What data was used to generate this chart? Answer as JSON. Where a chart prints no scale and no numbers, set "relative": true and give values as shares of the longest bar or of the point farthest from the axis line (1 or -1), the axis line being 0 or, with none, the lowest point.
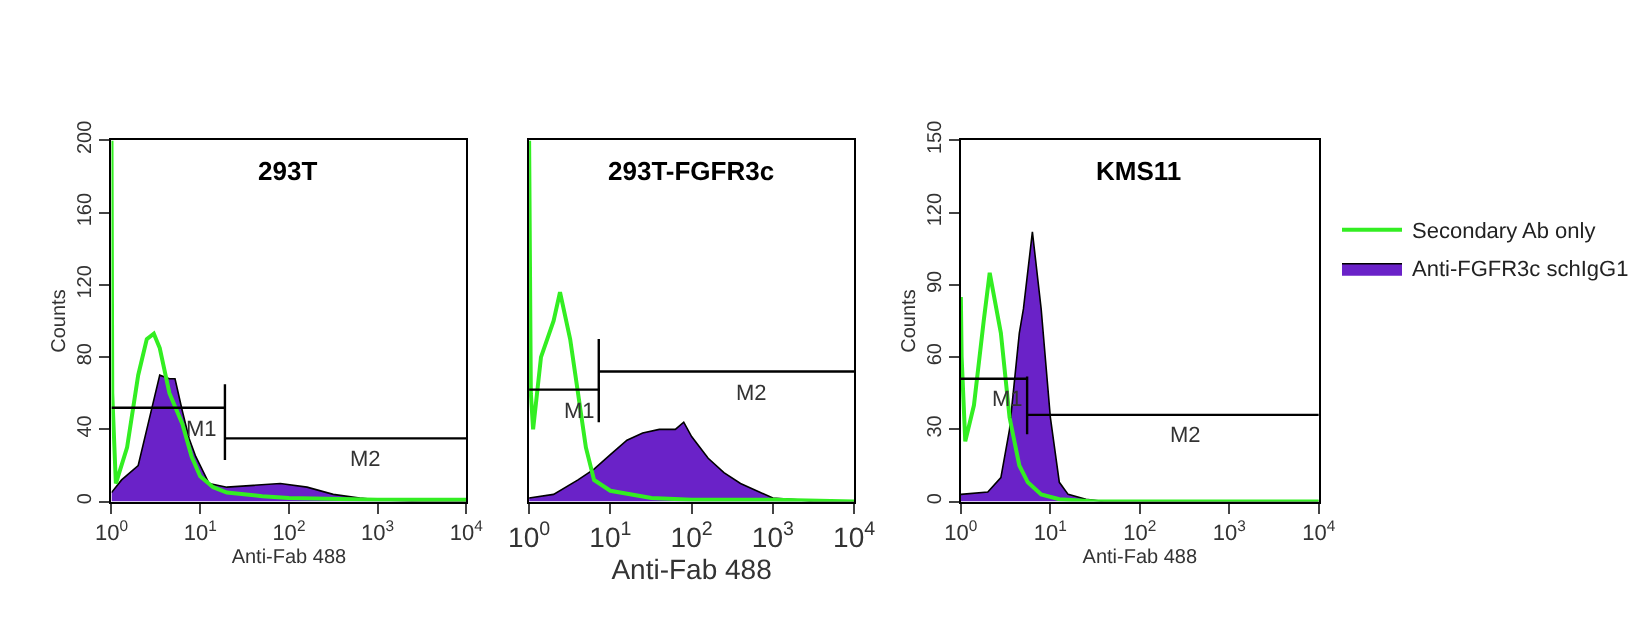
{
  "chart_data": [
    {
      "type": "area",
      "title": "293T",
      "xlabel": "Anti-Fab 488",
      "ylabel": "Counts",
      "log": "x",
      "legend": false,
      "xlim": [
        1,
        10000
      ],
      "xticks": [
        {
          "value": 1,
          "label": "10$^{0}$"
        },
        {
          "value": 10,
          "label": "10$^{1}$"
        },
        {
          "value": 100,
          "label": "10$^{2}$"
        },
        {
          "value": 1000,
          "label": "10$^{3}$"
        },
        {
          "value": 10000,
          "label": "10$^{4}$"
        }
      ],
      "ylim": [
        0,
        200
      ],
      "yticks": [
        0,
        40,
        80,
        120,
        160,
        200
      ],
      "series": [
        {
          "color": "#6a22c8",
          "x": [
            1,
            1.3,
            2,
            2.5,
            3.5,
            4.5,
            5.2,
            6.3,
            7.5,
            8.9,
            12.6,
            20,
            40,
            80,
            160,
            316,
            630,
            1000,
            3162,
            10000
          ],
          "values": [
            5,
            12,
            20,
            40,
            70,
            68,
            68,
            50,
            35,
            25,
            10,
            8,
            9,
            10,
            8,
            4,
            2,
            1,
            0,
            0
          ]
        },
        {
          "type": "line",
          "color": "#33ee22",
          "x": [
            1,
            1.02,
            1.12,
            1.5,
            2,
            2.5,
            3,
            3.5,
            4.5,
            6.3,
            8,
            10,
            14,
            20,
            50,
            100,
            1000,
            10000
          ],
          "values": [
            200,
            60,
            10,
            30,
            70,
            90,
            93,
            85,
            60,
            43,
            25,
            14,
            8,
            5,
            3,
            2,
            1,
            1
          ]
        },
        {
          "type": "line",
          "color": "#000000",
          "x": [
            1,
            19,
            19,
            19
          ],
          "values": [
            52,
            52,
            65,
            23
          ]
        },
        {
          "type": "line",
          "color": "#000000",
          "x": [
            19,
            10000
          ],
          "values": [
            35,
            35
          ]
        }
      ],
      "annotations": [
        {
          "text": "M1",
          "x": 10,
          "y": 52
        },
        {
          "text": "M2",
          "x": 720,
          "y": 35
        }
      ]
    },
    {
      "type": "area",
      "title": "293T-FGFR3c",
      "xlabel": "Anti-Fab 488",
      "log": "x",
      "legend": false,
      "relative": true,
      "tick_labels": "x",
      "xlim": [
        1,
        10000
      ],
      "xticks": [
        {
          "value": 1,
          "label": "10$^{0}$"
        },
        {
          "value": 10,
          "label": "10$^{1}$"
        },
        {
          "value": 100,
          "label": "10$^{2}$"
        },
        {
          "value": 1000,
          "label": "10$^{3}$"
        },
        {
          "value": 10000,
          "label": "10$^{4}$"
        }
      ],
      "series": [
        {
          "color": "#6a22c8",
          "x": [
            1,
            2,
            4,
            6.3,
            10,
            16,
            25,
            40,
            63,
            80,
            100,
            160,
            250,
            400,
            630,
            1000,
            2000,
            3162,
            10000
          ],
          "values": [
            0.01,
            0.02,
            0.06,
            0.09,
            0.13,
            0.17,
            0.19,
            0.2,
            0.2,
            0.22,
            0.18,
            0.12,
            0.08,
            0.05,
            0.03,
            0.01,
            0.005,
            0,
            0
          ]
        },
        {
          "type": "line",
          "color": "#33ee22",
          "x": [
            1,
            1.05,
            1.12,
            1.4,
            2,
            2.4,
            3.2,
            4,
            5,
            6.3,
            10,
            32,
            100,
            1000,
            10000
          ],
          "values": [
            1,
            0.3,
            0.2,
            0.4,
            0.5,
            0.58,
            0.45,
            0.3,
            0.15,
            0.06,
            0.03,
            0.01,
            0.005,
            0.005,
            0
          ]
        },
        {
          "type": "line",
          "color": "#000000",
          "x": [
            1,
            7.2,
            7.2,
            7.2
          ],
          "values": [
            0.31,
            0.31,
            0.45,
            0.22
          ]
        },
        {
          "type": "line",
          "color": "#000000",
          "x": [
            7.2,
            10000
          ],
          "values": [
            0.36,
            0.36
          ]
        }
      ],
      "annotations": [
        {
          "text": "M1",
          "x": 4.2,
          "y": 0.31
        },
        {
          "text": "M2",
          "x": 530,
          "y": 0.36
        }
      ]
    },
    {
      "type": "area",
      "title": "KMS11",
      "xlabel": "Anti-Fab 488",
      "ylabel": "Counts",
      "log": "x",
      "legend": "right",
      "xlim": [
        1,
        10000
      ],
      "xticks": [
        {
          "value": 1,
          "label": "10$^{0}$"
        },
        {
          "value": 10,
          "label": "10$^{1}$"
        },
        {
          "value": 100,
          "label": "10$^{2}$"
        },
        {
          "value": 1000,
          "label": "10$^{3}$"
        },
        {
          "value": 10000,
          "label": "10$^{4}$"
        }
      ],
      "ylim": [
        0,
        150
      ],
      "yticks": [
        0,
        30,
        60,
        90,
        120,
        150
      ],
      "series": [
        {
          "type": "line",
          "name": "Secondary Ab only",
          "color": "#33ee22",
          "x": [
            1,
            1.02,
            1.12,
            1.4,
            1.8,
            2.1,
            2.8,
            3.5,
            4.5,
            5.6,
            7.9,
            12.6,
            32,
            10000
          ],
          "values": [
            85,
            60,
            25,
            40,
            75,
            95,
            70,
            35,
            15,
            8,
            3,
            1,
            0,
            0
          ]
        },
        {
          "name": "Anti-FGFR3c schIgG1",
          "color": "#6a22c8",
          "x": [
            1,
            2,
            2.8,
            3.5,
            4.5,
            5,
            6.3,
            7.9,
            10,
            12.6,
            15.8,
            25,
            40,
            10000
          ],
          "values": [
            3,
            4,
            10,
            30,
            70,
            80,
            112,
            80,
            35,
            8,
            3,
            1,
            0,
            0
          ]
        },
        {
          "type": "line",
          "color": "#000000",
          "x": [
            1,
            5.5,
            5.5,
            5.5
          ],
          "values": [
            51,
            51,
            52,
            28
          ]
        },
        {
          "type": "line",
          "color": "#000000",
          "x": [
            5.5,
            10000
          ],
          "values": [
            36,
            36
          ]
        }
      ],
      "annotations": [
        {
          "text": "M1",
          "x": 3.2,
          "y": 51
        },
        {
          "text": "M2",
          "x": 320,
          "y": 36
        }
      ]
    }
  ]
}
